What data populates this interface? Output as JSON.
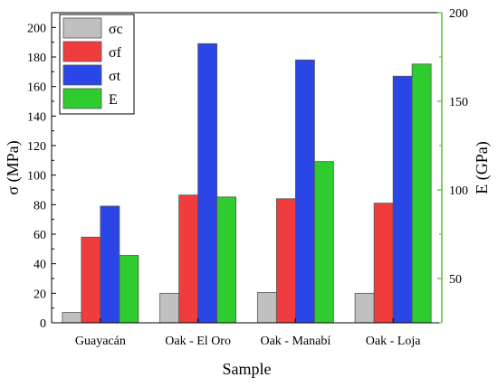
{
  "chart_data": {
    "type": "bar",
    "categories": [
      "Guayacán",
      "Oak - El Oro",
      "Oak - Manabí",
      "Oak - Loja"
    ],
    "xlabel": "Sample",
    "ylabel": "σ (MPa)",
    "ylabel_right": "E (GPa)",
    "ylim": [
      0,
      210
    ],
    "ylim_right": [
      25,
      200
    ],
    "yticks": [
      0,
      20,
      40,
      60,
      80,
      100,
      120,
      140,
      160,
      180,
      200
    ],
    "yticks_right": [
      50,
      100,
      150,
      200
    ],
    "grid": false,
    "legend_position": "top-left",
    "series": [
      {
        "name": "σc",
        "axis": "left",
        "color": "#c0c0c0",
        "values": [
          7,
          20,
          20.5,
          20
        ]
      },
      {
        "name": "σf",
        "axis": "left",
        "color": "#f03c3c",
        "values": [
          58,
          86.5,
          84,
          81
        ]
      },
      {
        "name": "σt",
        "axis": "left",
        "color": "#2b46e6",
        "values": [
          79,
          189,
          178,
          167
        ]
      },
      {
        "name": "E",
        "axis": "right",
        "color": "#2ecc2e",
        "values": [
          63,
          96,
          116,
          171
        ]
      }
    ],
    "axis_colors": {
      "left": "#000000",
      "right": "#5fc83c"
    }
  }
}
